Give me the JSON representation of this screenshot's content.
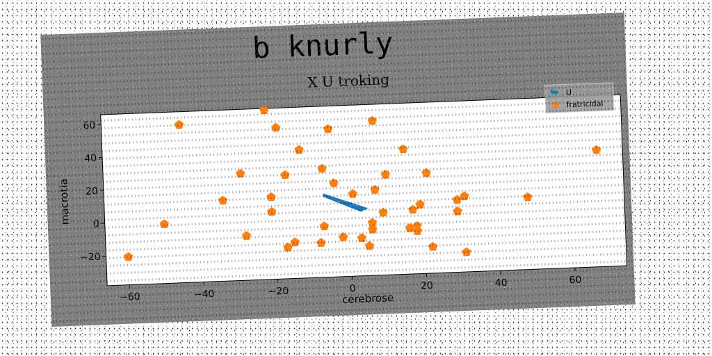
{
  "chart_data": {
    "type": "scatter",
    "suptitle": "b knurly",
    "title": "X U troking",
    "xlabel": "cerebrose",
    "ylabel": "macrotia",
    "xlim": [
      -66,
      74
    ],
    "ylim": [
      -38,
      66
    ],
    "xticks": [
      -60,
      -40,
      -20,
      0,
      20,
      40,
      60
    ],
    "yticks": [
      -20,
      0,
      20,
      40,
      60
    ],
    "xtick_labels": [
      "−60",
      "−40",
      "−20",
      "0",
      "20",
      "40",
      "60"
    ],
    "ytick_labels": [
      "−20",
      "0",
      "20",
      "40",
      "60"
    ],
    "grid": false,
    "legend_position": "upper right",
    "series": [
      {
        "name": "U",
        "marker": "filled-polygon",
        "color": "#1f77b4",
        "points": [
          [
            -7,
            13
          ],
          [
            5,
            3
          ],
          [
            3,
            1
          ],
          [
            -7,
            11
          ]
        ]
      },
      {
        "name": "fratricidal",
        "marker": "pentagon",
        "color": "#ff7f0e",
        "points": [
          [
            -45,
            58
          ],
          [
            -22,
            65
          ],
          [
            -19,
            54
          ],
          [
            -5,
            52
          ],
          [
            7,
            56
          ],
          [
            -13,
            40
          ],
          [
            15,
            38
          ],
          [
            -29,
            27
          ],
          [
            -7,
            28
          ],
          [
            -17,
            25
          ],
          [
            10,
            23
          ],
          [
            21,
            23
          ],
          [
            67,
            33
          ],
          [
            -4,
            19
          ],
          [
            -34,
            11
          ],
          [
            -21,
            12
          ],
          [
            1,
            12
          ],
          [
            7,
            14
          ],
          [
            -21,
            3
          ],
          [
            29,
            6
          ],
          [
            31,
            8
          ],
          [
            48,
            6
          ],
          [
            -50,
            -2
          ],
          [
            9,
            0
          ],
          [
            17,
            1
          ],
          [
            19,
            4
          ],
          [
            29,
            -1
          ],
          [
            -7,
            -7
          ],
          [
            -28,
            -11
          ],
          [
            6,
            -6
          ],
          [
            6,
            -10
          ],
          [
            16,
            -10
          ],
          [
            18,
            -9
          ],
          [
            18,
            -12
          ],
          [
            -15,
            -16
          ],
          [
            -2,
            -14
          ],
          [
            3,
            -15
          ],
          [
            -8,
            -17
          ],
          [
            -17,
            -19
          ],
          [
            5,
            -20
          ],
          [
            22,
            -22
          ],
          [
            31,
            -26
          ],
          [
            -60,
            -21
          ]
        ]
      }
    ]
  }
}
